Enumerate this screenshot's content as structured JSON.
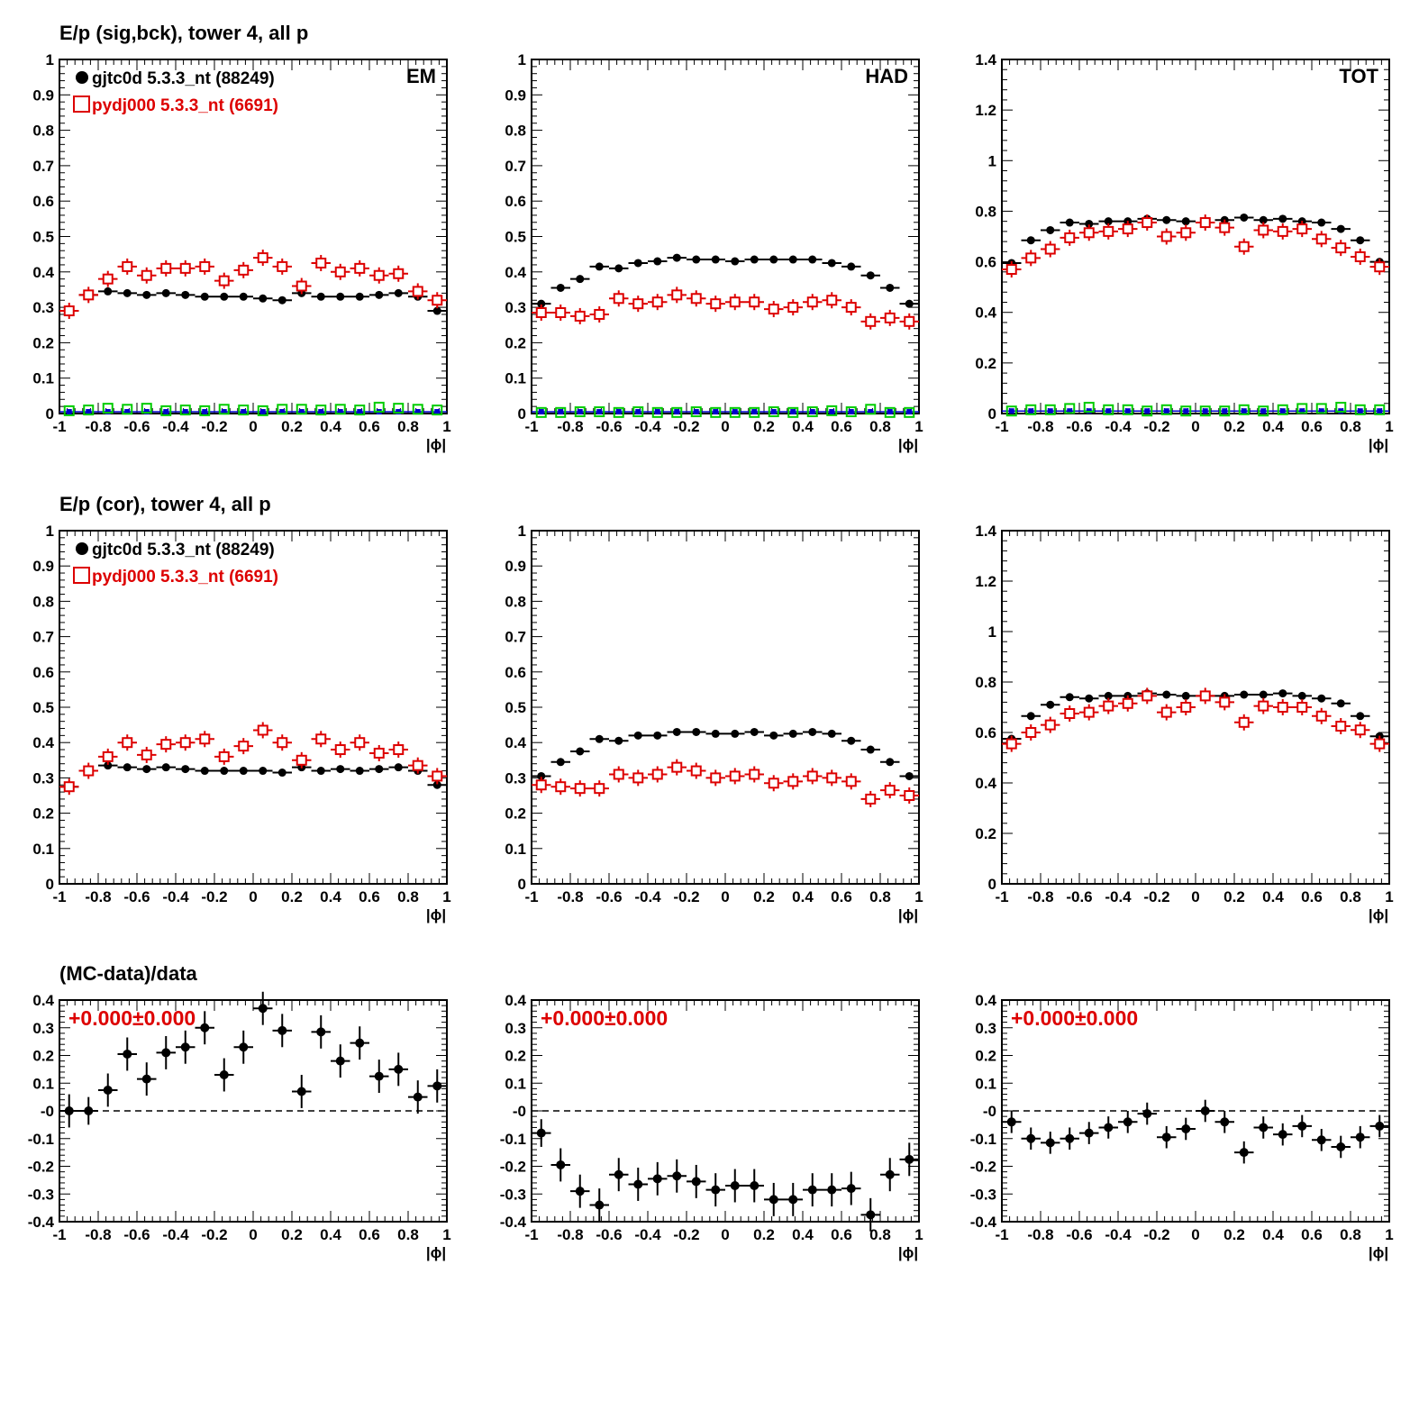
{
  "colors": {
    "data": "#000000",
    "mc": "#dd0000",
    "bkg_data": "#0000cc",
    "bkg_mc": "#00cc00",
    "frame": "#000000"
  },
  "x_ticks": [
    "-1",
    "-0.8",
    "-0.6",
    "-0.4",
    "-0.2",
    "0",
    "0.2",
    "0.4",
    "0.6",
    "0.8",
    "1"
  ],
  "chart_data": [
    {
      "type": "scatter",
      "row": 0,
      "col": 0,
      "title": "E/p (sig,bck), tower 4, all p",
      "label": "EM",
      "xlabel": "|ϕ|",
      "xlim": [
        -1,
        1
      ],
      "ylim": [
        0,
        1
      ],
      "yticks": [
        "0",
        "0.1",
        "0.2",
        "0.3",
        "0.4",
        "0.5",
        "0.6",
        "0.7",
        "0.8",
        "0.9",
        "1"
      ],
      "legend": [
        "gjtc0d 5.3.3_nt (88249)",
        "pydj000 5.3.3_nt (6691)"
      ],
      "x": [
        -0.95,
        -0.85,
        -0.75,
        -0.65,
        -0.55,
        -0.45,
        -0.35,
        -0.25,
        -0.15,
        -0.05,
        0.05,
        0.15,
        0.25,
        0.35,
        0.45,
        0.55,
        0.65,
        0.75,
        0.85,
        0.95
      ],
      "series": [
        {
          "name": "gjtc0d 5.3.3_nt (88249)",
          "values": [
            0.29,
            0.335,
            0.345,
            0.34,
            0.335,
            0.34,
            0.335,
            0.33,
            0.33,
            0.33,
            0.325,
            0.32,
            0.34,
            0.33,
            0.33,
            0.33,
            0.335,
            0.34,
            0.33,
            0.29
          ]
        },
        {
          "values": [
            0.29,
            0.335,
            0.38,
            0.415,
            0.39,
            0.41,
            0.41,
            0.415,
            0.375,
            0.405,
            0.44,
            0.415,
            0.36,
            0.425,
            0.4,
            0.41,
            0.39,
            0.395,
            0.345,
            0.32
          ]
        }
      ],
      "background": [
        {
          "values": [
            0.005,
            0.005,
            0.005,
            0.005,
            0.005,
            0.005,
            0.005,
            0.005,
            0.005,
            0.005,
            0.005,
            0.005,
            0.005,
            0.005,
            0.005,
            0.005,
            0.005,
            0.005,
            0.005,
            0.005
          ]
        },
        {
          "values": [
            0.008,
            0.01,
            0.015,
            0.012,
            0.015,
            0.008,
            0.01,
            0.008,
            0.012,
            0.01,
            0.008,
            0.012,
            0.012,
            0.01,
            0.012,
            0.01,
            0.018,
            0.015,
            0.012,
            0.01
          ]
        }
      ]
    },
    {
      "type": "scatter",
      "row": 0,
      "col": 1,
      "label": "HAD",
      "xlabel": "|ϕ|",
      "xlim": [
        -1,
        1
      ],
      "ylim": [
        0,
        1
      ],
      "yticks": [
        "0",
        "0.1",
        "0.2",
        "0.3",
        "0.4",
        "0.5",
        "0.6",
        "0.7",
        "0.8",
        "0.9",
        "1"
      ],
      "x": [
        -0.95,
        -0.85,
        -0.75,
        -0.65,
        -0.55,
        -0.45,
        -0.35,
        -0.25,
        -0.15,
        -0.05,
        0.05,
        0.15,
        0.25,
        0.35,
        0.45,
        0.55,
        0.65,
        0.75,
        0.85,
        0.95
      ],
      "series": [
        {
          "values": [
            0.31,
            0.355,
            0.38,
            0.415,
            0.41,
            0.425,
            0.43,
            0.44,
            0.435,
            0.435,
            0.43,
            0.435,
            0.435,
            0.435,
            0.435,
            0.425,
            0.415,
            0.39,
            0.355,
            0.31
          ]
        },
        {
          "values": [
            0.285,
            0.285,
            0.275,
            0.28,
            0.325,
            0.31,
            0.315,
            0.335,
            0.325,
            0.31,
            0.315,
            0.315,
            0.295,
            0.3,
            0.315,
            0.32,
            0.3,
            0.26,
            0.27,
            0.26
          ]
        }
      ],
      "background": [
        {
          "values": [
            0.005,
            0.005,
            0.005,
            0.005,
            0.005,
            0.005,
            0.005,
            0.005,
            0.005,
            0.005,
            0.005,
            0.005,
            0.005,
            0.005,
            0.005,
            0.005,
            0.005,
            0.005,
            0.005,
            0.005
          ]
        },
        {
          "values": [
            0.003,
            0.003,
            0.005,
            0.005,
            0.003,
            0.005,
            0.003,
            0.003,
            0.005,
            0.003,
            0.003,
            0.003,
            0.005,
            0.003,
            0.005,
            0.008,
            0.005,
            0.012,
            0.003,
            0.003
          ]
        }
      ]
    },
    {
      "type": "scatter",
      "row": 0,
      "col": 2,
      "label": "TOT",
      "xlabel": "|ϕ|",
      "xlim": [
        -1,
        1
      ],
      "ylim": [
        0,
        1.4
      ],
      "yticks": [
        "0",
        "0.2",
        "0.4",
        "0.6",
        "0.8",
        "1",
        "1.2",
        "1.4"
      ],
      "x": [
        -0.95,
        -0.85,
        -0.75,
        -0.65,
        -0.55,
        -0.45,
        -0.35,
        -0.25,
        -0.15,
        -0.05,
        0.05,
        0.15,
        0.25,
        0.35,
        0.45,
        0.55,
        0.65,
        0.75,
        0.85,
        0.95
      ],
      "series": [
        {
          "values": [
            0.595,
            0.685,
            0.725,
            0.755,
            0.75,
            0.76,
            0.76,
            0.77,
            0.765,
            0.76,
            0.755,
            0.765,
            0.775,
            0.765,
            0.77,
            0.76,
            0.755,
            0.73,
            0.685,
            0.6
          ]
        },
        {
          "values": [
            0.57,
            0.615,
            0.65,
            0.695,
            0.715,
            0.72,
            0.73,
            0.755,
            0.7,
            0.715,
            0.755,
            0.735,
            0.66,
            0.725,
            0.72,
            0.73,
            0.69,
            0.655,
            0.62,
            0.58
          ]
        }
      ],
      "background": [
        {
          "values": [
            0.01,
            0.01,
            0.01,
            0.01,
            0.01,
            0.01,
            0.01,
            0.01,
            0.01,
            0.01,
            0.01,
            0.01,
            0.01,
            0.01,
            0.01,
            0.01,
            0.01,
            0.01,
            0.01,
            0.01
          ]
        },
        {
          "values": [
            0.01,
            0.015,
            0.015,
            0.02,
            0.025,
            0.015,
            0.015,
            0.01,
            0.015,
            0.01,
            0.01,
            0.01,
            0.015,
            0.01,
            0.015,
            0.02,
            0.02,
            0.025,
            0.015,
            0.015
          ]
        }
      ]
    },
    {
      "type": "scatter",
      "row": 1,
      "col": 0,
      "title": "E/p (cor), tower 4, all p",
      "xlabel": "|ϕ|",
      "xlim": [
        -1,
        1
      ],
      "ylim": [
        0,
        1
      ],
      "yticks": [
        "0",
        "0.1",
        "0.2",
        "0.3",
        "0.4",
        "0.5",
        "0.6",
        "0.7",
        "0.8",
        "0.9",
        "1"
      ],
      "legend": [
        "gjtc0d 5.3.3_nt (88249)",
        "pydj000 5.3.3_nt (6691)"
      ],
      "x": [
        -0.95,
        -0.85,
        -0.75,
        -0.65,
        -0.55,
        -0.45,
        -0.35,
        -0.25,
        -0.15,
        -0.05,
        0.05,
        0.15,
        0.25,
        0.35,
        0.45,
        0.55,
        0.65,
        0.75,
        0.85,
        0.95
      ],
      "series": [
        {
          "values": [
            0.275,
            0.32,
            0.335,
            0.33,
            0.325,
            0.33,
            0.325,
            0.32,
            0.32,
            0.32,
            0.32,
            0.315,
            0.33,
            0.32,
            0.325,
            0.32,
            0.325,
            0.33,
            0.32,
            0.28
          ]
        },
        {
          "values": [
            0.275,
            0.32,
            0.36,
            0.4,
            0.365,
            0.395,
            0.4,
            0.41,
            0.36,
            0.39,
            0.435,
            0.4,
            0.35,
            0.41,
            0.38,
            0.4,
            0.37,
            0.38,
            0.335,
            0.305
          ]
        }
      ]
    },
    {
      "type": "scatter",
      "row": 1,
      "col": 1,
      "xlabel": "|ϕ|",
      "xlim": [
        -1,
        1
      ],
      "ylim": [
        0,
        1
      ],
      "yticks": [
        "0",
        "0.1",
        "0.2",
        "0.3",
        "0.4",
        "0.5",
        "0.6",
        "0.7",
        "0.8",
        "0.9",
        "1"
      ],
      "x": [
        -0.95,
        -0.85,
        -0.75,
        -0.65,
        -0.55,
        -0.45,
        -0.35,
        -0.25,
        -0.15,
        -0.05,
        0.05,
        0.15,
        0.25,
        0.35,
        0.45,
        0.55,
        0.65,
        0.75,
        0.85,
        0.95
      ],
      "series": [
        {
          "values": [
            0.305,
            0.345,
            0.375,
            0.41,
            0.405,
            0.42,
            0.42,
            0.43,
            0.43,
            0.425,
            0.425,
            0.43,
            0.42,
            0.425,
            0.43,
            0.425,
            0.405,
            0.38,
            0.345,
            0.305
          ]
        },
        {
          "values": [
            0.28,
            0.275,
            0.27,
            0.27,
            0.31,
            0.3,
            0.31,
            0.33,
            0.32,
            0.3,
            0.305,
            0.31,
            0.285,
            0.29,
            0.305,
            0.3,
            0.29,
            0.24,
            0.265,
            0.25
          ]
        }
      ]
    },
    {
      "type": "scatter",
      "row": 1,
      "col": 2,
      "xlabel": "|ϕ|",
      "xlim": [
        -1,
        1
      ],
      "ylim": [
        0,
        1.4
      ],
      "yticks": [
        "0",
        "0.2",
        "0.4",
        "0.6",
        "0.8",
        "1",
        "1.2",
        "1.4"
      ],
      "x": [
        -0.95,
        -0.85,
        -0.75,
        -0.65,
        -0.55,
        -0.45,
        -0.35,
        -0.25,
        -0.15,
        -0.05,
        0.05,
        0.15,
        0.25,
        0.35,
        0.45,
        0.55,
        0.65,
        0.75,
        0.85,
        0.95
      ],
      "series": [
        {
          "values": [
            0.575,
            0.665,
            0.71,
            0.74,
            0.735,
            0.745,
            0.745,
            0.755,
            0.75,
            0.745,
            0.745,
            0.745,
            0.75,
            0.75,
            0.755,
            0.745,
            0.735,
            0.715,
            0.665,
            0.585
          ]
        },
        {
          "values": [
            0.555,
            0.6,
            0.63,
            0.675,
            0.68,
            0.705,
            0.715,
            0.745,
            0.68,
            0.7,
            0.745,
            0.72,
            0.64,
            0.705,
            0.7,
            0.7,
            0.665,
            0.625,
            0.61,
            0.555
          ]
        }
      ]
    },
    {
      "type": "scatter",
      "row": 2,
      "col": 0,
      "title": "(MC-data)/data",
      "annotation": "+0.000±0.000",
      "xlabel": "|ϕ|",
      "xlim": [
        -1,
        1
      ],
      "ylim": [
        -0.4,
        0.4
      ],
      "reference_line": 0,
      "yticks": [
        "-0.4",
        "-0.3",
        "-0.2",
        "-0.1",
        "-0",
        "0.1",
        "0.2",
        "0.3",
        "0.4"
      ],
      "x": [
        -0.95,
        -0.85,
        -0.75,
        -0.65,
        -0.55,
        -0.45,
        -0.35,
        -0.25,
        -0.15,
        -0.05,
        0.05,
        0.15,
        0.25,
        0.35,
        0.45,
        0.55,
        0.65,
        0.75,
        0.85,
        0.95
      ],
      "series": [
        {
          "values": [
            0.0,
            0.0,
            0.075,
            0.205,
            0.115,
            0.21,
            0.23,
            0.3,
            0.13,
            0.23,
            0.37,
            0.29,
            0.07,
            0.285,
            0.18,
            0.245,
            0.125,
            0.15,
            0.05,
            0.09
          ],
          "errors": [
            0.06,
            0.05,
            0.06,
            0.06,
            0.06,
            0.06,
            0.06,
            0.06,
            0.06,
            0.06,
            0.06,
            0.06,
            0.06,
            0.06,
            0.06,
            0.06,
            0.06,
            0.06,
            0.06,
            0.06
          ]
        }
      ]
    },
    {
      "type": "scatter",
      "row": 2,
      "col": 1,
      "annotation": "+0.000±0.000",
      "xlabel": "|ϕ|",
      "xlim": [
        -1,
        1
      ],
      "ylim": [
        -0.4,
        0.4
      ],
      "reference_line": 0,
      "yticks": [
        "-0.4",
        "-0.3",
        "-0.2",
        "-0.1",
        "-0",
        "0.1",
        "0.2",
        "0.3",
        "0.4"
      ],
      "x": [
        -0.95,
        -0.85,
        -0.75,
        -0.65,
        -0.55,
        -0.45,
        -0.35,
        -0.25,
        -0.15,
        -0.05,
        0.05,
        0.15,
        0.25,
        0.35,
        0.45,
        0.55,
        0.65,
        0.75,
        0.85,
        0.95
      ],
      "series": [
        {
          "values": [
            -0.08,
            -0.195,
            -0.29,
            -0.34,
            -0.23,
            -0.265,
            -0.245,
            -0.235,
            -0.255,
            -0.285,
            -0.27,
            -0.27,
            -0.32,
            -0.32,
            -0.285,
            -0.285,
            -0.28,
            -0.375,
            -0.23,
            -0.175
          ],
          "errors": [
            0.05,
            0.06,
            0.06,
            0.06,
            0.06,
            0.06,
            0.06,
            0.06,
            0.06,
            0.06,
            0.06,
            0.06,
            0.06,
            0.06,
            0.06,
            0.06,
            0.06,
            0.06,
            0.06,
            0.06
          ]
        }
      ]
    },
    {
      "type": "scatter",
      "row": 2,
      "col": 2,
      "annotation": "+0.000±0.000",
      "xlabel": "|ϕ|",
      "xlim": [
        -1,
        1
      ],
      "ylim": [
        -0.4,
        0.4
      ],
      "reference_line": 0,
      "yticks": [
        "-0.4",
        "-0.3",
        "-0.2",
        "-0.1",
        "-0",
        "0.1",
        "0.2",
        "0.3",
        "0.4"
      ],
      "x": [
        -0.95,
        -0.85,
        -0.75,
        -0.65,
        -0.55,
        -0.45,
        -0.35,
        -0.25,
        -0.15,
        -0.05,
        0.05,
        0.15,
        0.25,
        0.35,
        0.45,
        0.55,
        0.65,
        0.75,
        0.85,
        0.95
      ],
      "series": [
        {
          "values": [
            -0.04,
            -0.1,
            -0.115,
            -0.1,
            -0.08,
            -0.06,
            -0.04,
            -0.01,
            -0.095,
            -0.065,
            0.0,
            -0.04,
            -0.15,
            -0.06,
            -0.085,
            -0.055,
            -0.105,
            -0.13,
            -0.095,
            -0.055
          ],
          "errors": [
            0.04,
            0.04,
            0.04,
            0.04,
            0.04,
            0.04,
            0.04,
            0.04,
            0.04,
            0.04,
            0.04,
            0.04,
            0.04,
            0.04,
            0.04,
            0.04,
            0.04,
            0.04,
            0.04,
            0.04
          ]
        }
      ]
    }
  ]
}
